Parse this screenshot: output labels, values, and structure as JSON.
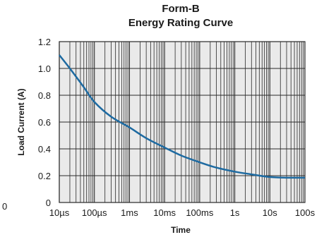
{
  "chart_data": {
    "type": "line",
    "title_line1": "Form-B",
    "title_line2": "Energy Rating Curve",
    "xlabel": "Time",
    "ylabel": "Load Current (A)",
    "x_scale": "log",
    "xlim": [
      "10µs",
      "100s"
    ],
    "ylim": [
      0,
      1.2
    ],
    "grid": true,
    "x_ticks": [
      "10µs",
      "100µs",
      "1ms",
      "10ms",
      "100ms",
      "1s",
      "10s",
      "100s"
    ],
    "y_ticks": [
      "0",
      "0.2",
      "0.4",
      "0.6",
      "0.8",
      "1.0",
      "1.2"
    ],
    "stray_label": "0",
    "series": [
      {
        "color": "#1d6aa1",
        "points": [
          {
            "t": "10µs",
            "y": 1.1
          },
          {
            "t": "20µs",
            "y": 1.0
          },
          {
            "t": "50µs",
            "y": 0.86
          },
          {
            "t": "100µs",
            "y": 0.75
          },
          {
            "t": "300µs",
            "y": 0.64
          },
          {
            "t": "1ms",
            "y": 0.56
          },
          {
            "t": "3ms",
            "y": 0.48
          },
          {
            "t": "10ms",
            "y": 0.41
          },
          {
            "t": "30ms",
            "y": 0.35
          },
          {
            "t": "100ms",
            "y": 0.3
          },
          {
            "t": "300ms",
            "y": 0.26
          },
          {
            "t": "1s",
            "y": 0.23
          },
          {
            "t": "3s",
            "y": 0.21
          },
          {
            "t": "10s",
            "y": 0.19
          },
          {
            "t": "30s",
            "y": 0.185
          },
          {
            "t": "100s",
            "y": 0.185
          }
        ]
      }
    ],
    "colors": {
      "plot_bg": "#eaeaea",
      "grid": "#2a2a2a",
      "curve": "#1d6aa1"
    }
  }
}
